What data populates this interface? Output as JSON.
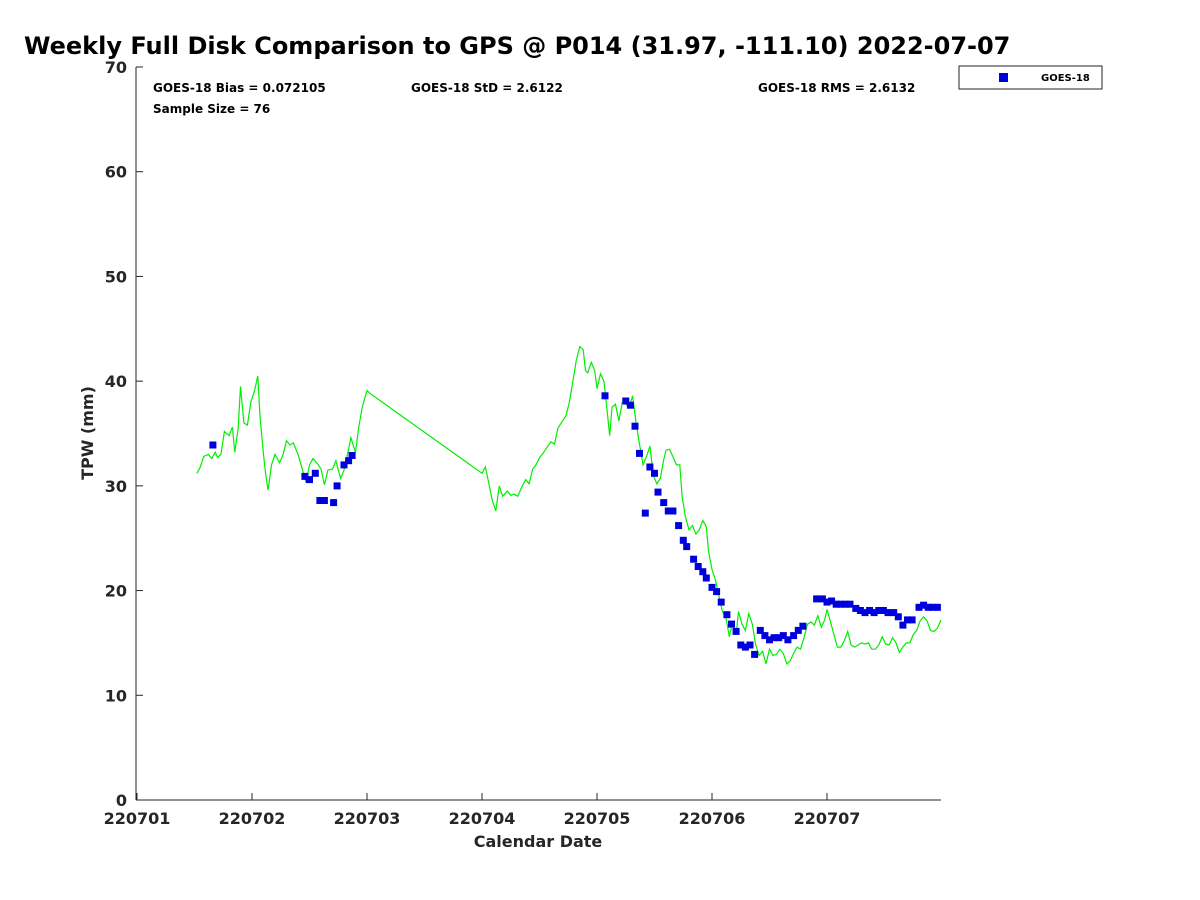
{
  "chart_data": {
    "type": "scatter",
    "title": "Weekly Full Disk Comparison to GPS @ P014 (31.97, -111.10) 2022-07-07",
    "xlabel": "Calendar Date",
    "ylabel": "TPW (mm)",
    "xlim": [
      0,
      7
    ],
    "ylim": [
      0,
      70
    ],
    "x_ticks": [
      {
        "value": 0,
        "label": "220701"
      },
      {
        "value": 1,
        "label": "220702"
      },
      {
        "value": 2,
        "label": "220703"
      },
      {
        "value": 3,
        "label": "220704"
      },
      {
        "value": 4,
        "label": "220705"
      },
      {
        "value": 5,
        "label": "220706"
      },
      {
        "value": 6,
        "label": "220707"
      }
    ],
    "y_ticks": [
      0,
      10,
      20,
      30,
      40,
      50,
      60,
      70
    ],
    "grid": false,
    "legend_position": "outside-top-right",
    "stats": {
      "bias": "GOES-18 Bias = 0.072105",
      "std": "GOES-18 StD = 2.6122",
      "rms": "GOES-18 RMS = 2.6132",
      "sample_size": "Sample Size = 76"
    },
    "series": [
      {
        "name": "GOES-18",
        "kind": "scatter",
        "marker": "square",
        "color": "#0000dd",
        "points": [
          [
            0.66,
            33.9
          ],
          [
            1.46,
            30.9
          ],
          [
            1.5,
            30.6
          ],
          [
            1.55,
            31.2
          ],
          [
            1.59,
            28.6
          ],
          [
            1.63,
            28.6
          ],
          [
            1.71,
            28.4
          ],
          [
            1.74,
            30.0
          ],
          [
            1.8,
            32.0
          ],
          [
            1.84,
            32.4
          ],
          [
            1.87,
            32.9
          ],
          [
            4.07,
            38.6
          ],
          [
            4.25,
            38.1
          ],
          [
            4.29,
            37.7
          ],
          [
            4.33,
            35.7
          ],
          [
            4.37,
            33.1
          ],
          [
            4.42,
            27.4
          ],
          [
            4.46,
            31.8
          ],
          [
            4.5,
            31.2
          ],
          [
            4.53,
            29.4
          ],
          [
            4.58,
            28.4
          ],
          [
            4.62,
            27.6
          ],
          [
            4.66,
            27.6
          ],
          [
            4.71,
            26.2
          ],
          [
            4.75,
            24.8
          ],
          [
            4.78,
            24.2
          ],
          [
            4.84,
            23.0
          ],
          [
            4.88,
            22.3
          ],
          [
            4.92,
            21.8
          ],
          [
            4.95,
            21.2
          ],
          [
            5.0,
            20.3
          ],
          [
            5.04,
            19.9
          ],
          [
            5.08,
            18.9
          ],
          [
            5.13,
            17.7
          ],
          [
            5.17,
            16.8
          ],
          [
            5.21,
            16.1
          ],
          [
            5.25,
            14.8
          ],
          [
            5.29,
            14.6
          ],
          [
            5.33,
            14.8
          ],
          [
            5.37,
            13.9
          ],
          [
            5.42,
            16.2
          ],
          [
            5.46,
            15.7
          ],
          [
            5.5,
            15.3
          ],
          [
            5.54,
            15.5
          ],
          [
            5.58,
            15.5
          ],
          [
            5.62,
            15.7
          ],
          [
            5.66,
            15.3
          ],
          [
            5.71,
            15.7
          ],
          [
            5.75,
            16.2
          ],
          [
            5.79,
            16.6
          ],
          [
            5.91,
            19.2
          ],
          [
            5.96,
            19.2
          ],
          [
            6.0,
            18.9
          ],
          [
            6.04,
            19.0
          ],
          [
            6.08,
            18.7
          ],
          [
            6.12,
            18.7
          ],
          [
            6.16,
            18.7
          ],
          [
            6.2,
            18.7
          ],
          [
            6.25,
            18.3
          ],
          [
            6.29,
            18.1
          ],
          [
            6.33,
            17.9
          ],
          [
            6.37,
            18.1
          ],
          [
            6.41,
            17.9
          ],
          [
            6.45,
            18.1
          ],
          [
            6.49,
            18.1
          ],
          [
            6.53,
            17.9
          ],
          [
            6.58,
            17.9
          ],
          [
            6.62,
            17.5
          ],
          [
            6.66,
            16.7
          ],
          [
            6.7,
            17.2
          ],
          [
            6.74,
            17.2
          ],
          [
            6.8,
            18.4
          ],
          [
            6.84,
            18.6
          ],
          [
            6.88,
            18.4
          ],
          [
            6.92,
            18.4
          ],
          [
            6.96,
            18.4
          ]
        ]
      },
      {
        "name": "",
        "kind": "line",
        "color": "#00ee00",
        "points": [
          [
            0.52,
            31.2
          ],
          [
            0.55,
            31.8
          ],
          [
            0.58,
            32.8
          ],
          [
            0.62,
            33.0
          ],
          [
            0.65,
            32.6
          ],
          [
            0.68,
            33.2
          ],
          [
            0.7,
            32.7
          ],
          [
            0.73,
            33.0
          ],
          [
            0.76,
            35.2
          ],
          [
            0.8,
            34.8
          ],
          [
            0.83,
            35.6
          ],
          [
            0.85,
            33.2
          ],
          [
            0.88,
            35.5
          ],
          [
            0.9,
            39.5
          ],
          [
            0.93,
            36.0
          ],
          [
            0.96,
            35.8
          ],
          [
            0.99,
            38.0
          ],
          [
            1.02,
            39.0
          ],
          [
            1.05,
            40.5
          ],
          [
            1.07,
            36.5
          ],
          [
            1.1,
            33.0
          ],
          [
            1.12,
            31.0
          ],
          [
            1.14,
            29.6
          ],
          [
            1.17,
            32.0
          ],
          [
            1.2,
            33.0
          ],
          [
            1.24,
            32.2
          ],
          [
            1.27,
            33.0
          ],
          [
            1.3,
            34.3
          ],
          [
            1.33,
            33.9
          ],
          [
            1.36,
            34.1
          ],
          [
            1.4,
            33.0
          ],
          [
            1.44,
            31.5
          ],
          [
            1.47,
            30.3
          ],
          [
            1.5,
            32.0
          ],
          [
            1.53,
            32.6
          ],
          [
            1.57,
            32.1
          ],
          [
            1.6,
            31.6
          ],
          [
            1.63,
            30.1
          ],
          [
            1.66,
            31.5
          ],
          [
            1.7,
            31.6
          ],
          [
            1.73,
            32.4
          ],
          [
            1.77,
            30.7
          ],
          [
            1.8,
            31.5
          ],
          [
            1.83,
            33.0
          ],
          [
            1.86,
            34.6
          ],
          [
            1.88,
            33.9
          ],
          [
            1.9,
            33.2
          ],
          [
            1.93,
            35.7
          ],
          [
            1.96,
            37.6
          ],
          [
            2.0,
            39.1
          ],
          [
            2.03,
            38.8
          ],
          [
            3.0,
            31.2
          ],
          [
            3.03,
            31.8
          ],
          [
            3.06,
            30.2
          ],
          [
            3.09,
            28.6
          ],
          [
            3.12,
            27.6
          ],
          [
            3.15,
            30.0
          ],
          [
            3.18,
            29.0
          ],
          [
            3.22,
            29.5
          ],
          [
            3.25,
            29.1
          ],
          [
            3.28,
            29.2
          ],
          [
            3.31,
            29.0
          ],
          [
            3.35,
            30.0
          ],
          [
            3.38,
            30.6
          ],
          [
            3.41,
            30.2
          ],
          [
            3.44,
            31.6
          ],
          [
            3.47,
            32.0
          ],
          [
            3.5,
            32.7
          ],
          [
            3.53,
            33.1
          ],
          [
            3.56,
            33.6
          ],
          [
            3.6,
            34.2
          ],
          [
            3.63,
            34.0
          ],
          [
            3.66,
            35.5
          ],
          [
            3.7,
            36.2
          ],
          [
            3.73,
            36.7
          ],
          [
            3.76,
            38.0
          ],
          [
            3.79,
            40.0
          ],
          [
            3.82,
            42.0
          ],
          [
            3.85,
            43.3
          ],
          [
            3.88,
            43.0
          ],
          [
            3.9,
            41.0
          ],
          [
            3.92,
            40.8
          ],
          [
            3.95,
            41.8
          ],
          [
            3.98,
            41.0
          ],
          [
            4.0,
            39.3
          ],
          [
            4.03,
            40.7
          ],
          [
            4.06,
            40.0
          ],
          [
            4.08,
            38.0
          ],
          [
            4.11,
            34.8
          ],
          [
            4.13,
            37.5
          ],
          [
            4.16,
            37.8
          ],
          [
            4.19,
            36.2
          ],
          [
            4.22,
            38.0
          ],
          [
            4.25,
            37.8
          ],
          [
            4.28,
            37.5
          ],
          [
            4.31,
            38.6
          ],
          [
            4.34,
            36.0
          ],
          [
            4.37,
            34.0
          ],
          [
            4.4,
            32.0
          ],
          [
            4.43,
            32.8
          ],
          [
            4.46,
            33.8
          ],
          [
            4.49,
            31.0
          ],
          [
            4.52,
            30.2
          ],
          [
            4.55,
            30.7
          ],
          [
            4.58,
            32.5
          ],
          [
            4.6,
            33.4
          ],
          [
            4.63,
            33.5
          ],
          [
            4.66,
            32.8
          ],
          [
            4.69,
            32.0
          ],
          [
            4.72,
            32.0
          ],
          [
            4.74,
            29.0
          ],
          [
            4.77,
            27.0
          ],
          [
            4.8,
            25.8
          ],
          [
            4.83,
            26.2
          ],
          [
            4.86,
            25.4
          ],
          [
            4.89,
            25.8
          ],
          [
            4.92,
            26.7
          ],
          [
            4.95,
            26.1
          ],
          [
            4.97,
            23.8
          ],
          [
            5.0,
            22.0
          ],
          [
            5.03,
            21.0
          ],
          [
            5.06,
            19.5
          ],
          [
            5.09,
            18.0
          ],
          [
            5.12,
            17.5
          ],
          [
            5.15,
            15.6
          ],
          [
            5.18,
            17.0
          ],
          [
            5.21,
            15.8
          ],
          [
            5.23,
            18.0
          ],
          [
            5.26,
            16.8
          ],
          [
            5.29,
            16.2
          ],
          [
            5.32,
            17.8
          ],
          [
            5.35,
            16.8
          ],
          [
            5.38,
            14.8
          ],
          [
            5.41,
            13.8
          ],
          [
            5.44,
            14.2
          ],
          [
            5.47,
            13.0
          ],
          [
            5.5,
            14.4
          ],
          [
            5.53,
            13.8
          ],
          [
            5.56,
            13.9
          ],
          [
            5.59,
            14.4
          ],
          [
            5.62,
            14.0
          ],
          [
            5.65,
            13.0
          ],
          [
            5.68,
            13.3
          ],
          [
            5.71,
            14.0
          ],
          [
            5.74,
            14.6
          ],
          [
            5.77,
            14.4
          ],
          [
            5.8,
            15.5
          ],
          [
            5.83,
            16.8
          ],
          [
            5.86,
            17.0
          ],
          [
            5.89,
            16.7
          ],
          [
            5.92,
            17.6
          ],
          [
            5.95,
            16.5
          ],
          [
            5.98,
            17.2
          ],
          [
            6.0,
            18.2
          ],
          [
            6.03,
            17.0
          ],
          [
            6.06,
            15.8
          ],
          [
            6.09,
            14.6
          ],
          [
            6.12,
            14.6
          ],
          [
            6.15,
            15.2
          ],
          [
            6.18,
            16.1
          ],
          [
            6.21,
            14.8
          ],
          [
            6.24,
            14.6
          ],
          [
            6.27,
            14.8
          ],
          [
            6.3,
            15.0
          ],
          [
            6.33,
            14.9
          ],
          [
            6.36,
            15.0
          ],
          [
            6.39,
            14.4
          ],
          [
            6.42,
            14.4
          ],
          [
            6.45,
            14.8
          ],
          [
            6.48,
            15.6
          ],
          [
            6.51,
            14.9
          ],
          [
            6.54,
            14.8
          ],
          [
            6.57,
            15.5
          ],
          [
            6.6,
            15.0
          ],
          [
            6.63,
            14.1
          ],
          [
            6.66,
            14.6
          ],
          [
            6.69,
            15.0
          ],
          [
            6.72,
            15.0
          ],
          [
            6.75,
            15.8
          ],
          [
            6.78,
            16.2
          ],
          [
            6.81,
            17.1
          ],
          [
            6.84,
            17.5
          ],
          [
            6.87,
            17.1
          ],
          [
            6.9,
            16.2
          ],
          [
            6.93,
            16.1
          ],
          [
            6.96,
            16.4
          ],
          [
            6.99,
            17.2
          ]
        ]
      }
    ]
  }
}
